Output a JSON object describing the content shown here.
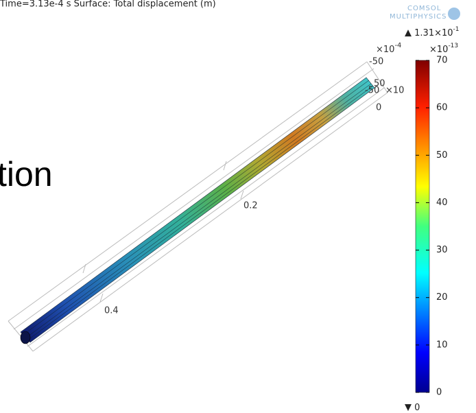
{
  "header": {
    "title": "Time=3.13e-4 s   Surface: Total displacement (m)"
  },
  "logo": {
    "line1": "COMSOL",
    "line2": "MULTIPHYSICS"
  },
  "overlay_text": "tion",
  "colorbar": {
    "max_label": "1.31×10",
    "max_exponent": "-1",
    "scale_label": "×10",
    "scale_exponent": "-13",
    "range": [
      0,
      70
    ],
    "ticks": [
      0,
      10,
      20,
      30,
      40,
      50,
      60,
      70
    ],
    "min_label": "0"
  },
  "axis_labels": {
    "scale_label": "×10",
    "scale_exponent": "-4",
    "a": "-50",
    "b": "50",
    "c": "-50",
    "d": "×10",
    "zero": "0",
    "x1": "0.2",
    "x2": "0.4"
  }
}
